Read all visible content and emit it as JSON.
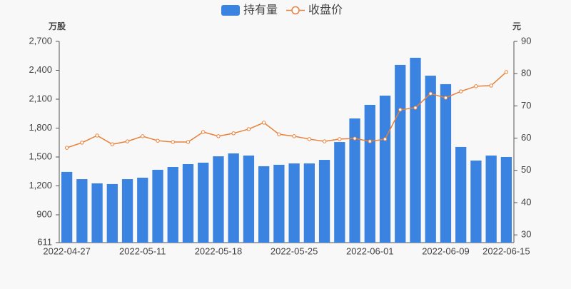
{
  "chart_data": {
    "type": "bar-line",
    "legend_position": "top",
    "ylabel": "万股",
    "y2label": "元",
    "categories": [
      "2022-04-27",
      null,
      null,
      null,
      null,
      "2022-05-11",
      null,
      null,
      null,
      null,
      "2022-05-18",
      null,
      null,
      null,
      null,
      "2022-05-25",
      null,
      null,
      null,
      null,
      "2022-06-01",
      null,
      null,
      null,
      null,
      "2022-06-09",
      null,
      null,
      null,
      "2022-06-15"
    ],
    "series": [
      {
        "name": "持有量",
        "type": "bar",
        "color": "#3a83e0",
        "axis": "y",
        "values": [
          1345,
          1270,
          1226,
          1219,
          1270,
          1285,
          1367,
          1396,
          1426,
          1441,
          1507,
          1537,
          1515,
          1404,
          1419,
          1433,
          1433,
          1470,
          1655,
          1900,
          2041,
          2137,
          2456,
          2530,
          2344,
          2256,
          1604,
          1463,
          1515,
          1500
        ]
      },
      {
        "name": "收盘价",
        "type": "line",
        "color": "#e8813a",
        "axis": "y2",
        "values": [
          57.0,
          58.6,
          60.8,
          58.1,
          59.0,
          60.6,
          59.2,
          58.8,
          58.8,
          61.9,
          60.6,
          61.5,
          62.8,
          64.8,
          61.2,
          60.6,
          59.7,
          59.0,
          59.7,
          59.9,
          59.0,
          59.7,
          68.8,
          69.4,
          73.8,
          72.5,
          74.5,
          76.1,
          76.3,
          80.5
        ]
      }
    ],
    "ylim": [
      611,
      2700
    ],
    "yticks": [
      611,
      900,
      {
        "value": 1200,
        "label": "1,200"
      },
      {
        "value": 1500,
        "label": "1,500"
      },
      {
        "value": 1800,
        "label": "1,800"
      },
      {
        "value": 2100,
        "label": "2,100"
      },
      {
        "value": 2400,
        "label": "2,400"
      },
      {
        "value": 2700,
        "label": "2,700"
      }
    ],
    "y2lim": [
      27.6,
      90
    ],
    "y2ticks": [
      30,
      40,
      50,
      60,
      70,
      80,
      90
    ]
  }
}
